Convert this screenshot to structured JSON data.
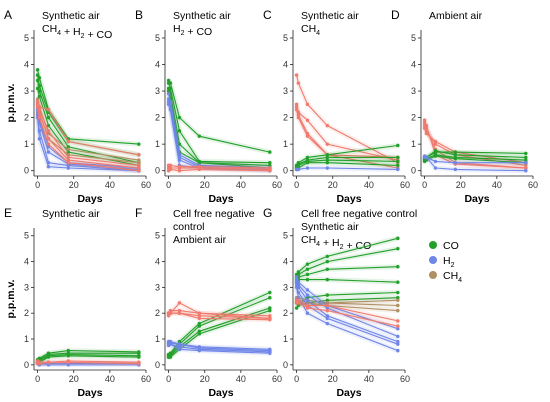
{
  "figure": {
    "colors": {
      "CO": "#22a02a",
      "H2": "#6f86e8",
      "CH4": "#b08f62",
      "control": "#f07a6e"
    },
    "legend": [
      {
        "key": "CO",
        "label": "CO",
        "color": "#22a02a"
      },
      {
        "key": "H2",
        "label": "H2",
        "color": "#6f86e8"
      },
      {
        "key": "CH4",
        "label": "CH4",
        "color": "#b08f62"
      }
    ]
  },
  "chart_data": [
    {
      "id": "A",
      "letter": "A",
      "type": "line",
      "title_lines": [
        "Synthetic air",
        "CH4 + H2 + CO"
      ],
      "xlabel": "Days",
      "ylabel": "p.p.m.v.",
      "xlim": [
        -2,
        60
      ],
      "ylim": [
        -0.2,
        5.3
      ],
      "xticks": [
        0,
        20,
        40,
        60
      ],
      "yticks": [
        0,
        1,
        2,
        3,
        4,
        5
      ],
      "x": [
        0,
        1,
        6,
        17,
        56
      ],
      "series": [
        {
          "group": "CO",
          "values": [
            3.8,
            3.5,
            2.3,
            1.2,
            1.0
          ]
        },
        {
          "group": "CO",
          "values": [
            3.6,
            3.2,
            2.2,
            1.1,
            0.6
          ]
        },
        {
          "group": "CO",
          "values": [
            3.4,
            3.0,
            2.0,
            0.9,
            0.3
          ]
        },
        {
          "group": "CO",
          "values": [
            3.1,
            2.8,
            1.7,
            0.7,
            0.2
          ]
        },
        {
          "group": "CH4",
          "values": [
            2.7,
            2.4,
            1.4,
            0.8,
            0.4
          ]
        },
        {
          "group": "CH4",
          "values": [
            2.5,
            2.2,
            1.2,
            0.6,
            0.3
          ]
        },
        {
          "group": "H2",
          "values": [
            2.3,
            1.9,
            0.9,
            0.3,
            0.1
          ]
        },
        {
          "group": "H2",
          "values": [
            2.2,
            1.8,
            0.7,
            0.25,
            0.05
          ]
        },
        {
          "group": "H2",
          "values": [
            2.1,
            1.5,
            0.3,
            0.2,
            0.0
          ]
        },
        {
          "group": "H2",
          "values": [
            2.0,
            1.2,
            0.15,
            0.1,
            0.0
          ]
        },
        {
          "group": "control",
          "values": [
            2.6,
            2.4,
            2.3,
            1.1,
            0.6
          ]
        },
        {
          "group": "control",
          "values": [
            2.6,
            2.3,
            1.5,
            0.5,
            0.2
          ]
        },
        {
          "group": "control",
          "values": [
            2.5,
            2.2,
            1.2,
            0.4,
            0.1
          ]
        },
        {
          "group": "control",
          "values": [
            2.4,
            2.0,
            1.0,
            0.3,
            0.0
          ]
        }
      ]
    },
    {
      "id": "B",
      "letter": "B",
      "type": "line",
      "title_lines": [
        "Synthetic air",
        "H2 + CO"
      ],
      "xlabel": "Days",
      "ylabel": "",
      "xlim": [
        -2,
        60
      ],
      "ylim": [
        -0.2,
        5.3
      ],
      "xticks": [
        0,
        20,
        40,
        60
      ],
      "yticks": [
        0,
        1,
        2,
        3,
        4,
        5
      ],
      "x": [
        0,
        1,
        6,
        17,
        56
      ],
      "series": [
        {
          "group": "CO",
          "values": [
            3.4,
            3.3,
            2.0,
            1.3,
            0.7
          ]
        },
        {
          "group": "CO",
          "values": [
            3.3,
            3.1,
            1.5,
            0.35,
            0.3
          ]
        },
        {
          "group": "CO",
          "values": [
            3.1,
            2.9,
            1.0,
            0.3,
            0.2
          ]
        },
        {
          "group": "CO",
          "values": [
            3.0,
            2.7,
            0.7,
            0.3,
            0.1
          ]
        },
        {
          "group": "H2",
          "values": [
            2.9,
            2.6,
            0.6,
            0.2,
            0.1
          ]
        },
        {
          "group": "H2",
          "values": [
            2.7,
            2.5,
            0.5,
            0.15,
            0.1
          ]
        },
        {
          "group": "H2",
          "values": [
            2.6,
            2.4,
            0.4,
            0.1,
            0.05
          ]
        },
        {
          "group": "H2",
          "values": [
            2.5,
            2.3,
            0.2,
            0.1,
            0.0
          ]
        },
        {
          "group": "control",
          "values": [
            0.2,
            0.2,
            0.15,
            0.15,
            0.1
          ]
        },
        {
          "group": "control",
          "values": [
            0.1,
            0.1,
            0.1,
            0.1,
            0.05
          ]
        },
        {
          "group": "control",
          "values": [
            0.0,
            0.05,
            0.0,
            0.05,
            0.0
          ]
        }
      ]
    },
    {
      "id": "C",
      "letter": "C",
      "type": "line",
      "title_lines": [
        "Synthetic air",
        "CH4"
      ],
      "xlabel": "Days",
      "ylabel": "",
      "xlim": [
        -2,
        60
      ],
      "ylim": [
        -0.2,
        5.3
      ],
      "xticks": [
        0,
        20,
        40,
        60
      ],
      "yticks": [
        0,
        1,
        2,
        3,
        4,
        5
      ],
      "x": [
        0,
        1,
        6,
        17,
        56
      ],
      "series": [
        {
          "group": "control",
          "values": [
            3.6,
            3.3,
            2.5,
            1.7,
            0.3
          ]
        },
        {
          "group": "control",
          "values": [
            2.5,
            2.2,
            1.9,
            1.0,
            0.4
          ]
        },
        {
          "group": "control",
          "values": [
            2.4,
            2.1,
            1.4,
            0.6,
            0.5
          ]
        },
        {
          "group": "control",
          "values": [
            2.3,
            2.0,
            1.3,
            0.6,
            0.1
          ]
        },
        {
          "group": "CO",
          "values": [
            0.2,
            0.3,
            0.5,
            0.6,
            0.95
          ]
        },
        {
          "group": "CO",
          "values": [
            0.15,
            0.25,
            0.4,
            0.5,
            0.5
          ]
        },
        {
          "group": "CO",
          "values": [
            0.1,
            0.2,
            0.35,
            0.4,
            0.35
          ]
        },
        {
          "group": "CO",
          "values": [
            0.05,
            0.1,
            0.3,
            0.3,
            0.2
          ]
        },
        {
          "group": "H2",
          "values": [
            0.05,
            0.05,
            0.1,
            0.1,
            0.05
          ]
        }
      ]
    },
    {
      "id": "D",
      "letter": "D",
      "type": "line",
      "title_lines": [
        "Ambient air"
      ],
      "xlabel": "Days",
      "ylabel": "",
      "xlim": [
        -2,
        60
      ],
      "ylim": [
        -0.2,
        5.3
      ],
      "xticks": [
        0,
        20,
        40,
        60
      ],
      "yticks": [
        0,
        1,
        2,
        3,
        4,
        5
      ],
      "x": [
        0,
        1,
        6,
        17,
        56
      ],
      "series": [
        {
          "group": "control",
          "values": [
            1.9,
            1.7,
            0.6,
            0.25,
            0.1
          ]
        },
        {
          "group": "control",
          "values": [
            1.8,
            1.6,
            0.8,
            0.3,
            0.1
          ]
        },
        {
          "group": "control",
          "values": [
            1.7,
            1.5,
            1.0,
            0.6,
            0.2
          ]
        },
        {
          "group": "control",
          "values": [
            1.6,
            1.4,
            1.1,
            0.7,
            0.3
          ]
        },
        {
          "group": "CO",
          "values": [
            0.5,
            0.5,
            0.7,
            0.7,
            0.65
          ]
        },
        {
          "group": "CO",
          "values": [
            0.45,
            0.5,
            0.75,
            0.6,
            0.5
          ]
        },
        {
          "group": "CO",
          "values": [
            0.4,
            0.45,
            0.6,
            0.5,
            0.4
          ]
        },
        {
          "group": "CO",
          "values": [
            0.35,
            0.4,
            0.55,
            0.45,
            0.3
          ]
        },
        {
          "group": "H2",
          "values": [
            0.55,
            0.5,
            0.35,
            0.3,
            0.3
          ]
        },
        {
          "group": "H2",
          "values": [
            0.5,
            0.5,
            0.1,
            0.05,
            0.0
          ]
        }
      ]
    },
    {
      "id": "E",
      "letter": "E",
      "type": "line",
      "title_lines": [
        "Synthetic air"
      ],
      "xlabel": "Days",
      "ylabel": "p.p.m.v.",
      "xlim": [
        -2,
        60
      ],
      "ylim": [
        -0.2,
        5.3
      ],
      "xticks": [
        0,
        20,
        40,
        60
      ],
      "yticks": [
        0,
        1,
        2,
        3,
        4,
        5
      ],
      "x": [
        0,
        1,
        6,
        17,
        56
      ],
      "series": [
        {
          "group": "CO",
          "values": [
            0.2,
            0.25,
            0.45,
            0.55,
            0.5
          ]
        },
        {
          "group": "CO",
          "values": [
            0.15,
            0.2,
            0.4,
            0.45,
            0.45
          ]
        },
        {
          "group": "CO",
          "values": [
            0.1,
            0.15,
            0.35,
            0.4,
            0.35
          ]
        },
        {
          "group": "CO",
          "values": [
            0.05,
            0.1,
            0.3,
            0.35,
            0.3
          ]
        },
        {
          "group": "H2",
          "values": [
            0.1,
            0.05,
            0.05,
            0.05,
            0.05
          ]
        },
        {
          "group": "H2",
          "values": [
            0.05,
            0.0,
            0.0,
            0.0,
            0.0
          ]
        },
        {
          "group": "control",
          "values": [
            0.15,
            0.1,
            0.1,
            0.15,
            0.1
          ]
        },
        {
          "group": "control",
          "values": [
            0.05,
            0.05,
            0.1,
            0.1,
            0.05
          ]
        }
      ]
    },
    {
      "id": "F",
      "letter": "F",
      "type": "line",
      "title_lines": [
        "Cell free negative",
        "control",
        "Ambient air"
      ],
      "xlabel": "Days",
      "ylabel": "",
      "xlim": [
        -2,
        60
      ],
      "ylim": [
        -0.2,
        5.3
      ],
      "xticks": [
        0,
        20,
        40,
        60
      ],
      "yticks": [
        0,
        1,
        2,
        3,
        4,
        5
      ],
      "x": [
        0,
        1,
        6,
        17,
        56
      ],
      "series": [
        {
          "group": "CO",
          "values": [
            0.4,
            0.45,
            0.9,
            1.6,
            2.8
          ]
        },
        {
          "group": "CO",
          "values": [
            0.35,
            0.4,
            0.8,
            1.5,
            2.6
          ]
        },
        {
          "group": "CO",
          "values": [
            0.3,
            0.35,
            0.7,
            1.3,
            2.2
          ]
        },
        {
          "group": "CO",
          "values": [
            0.3,
            0.3,
            0.6,
            1.2,
            2.1
          ]
        },
        {
          "group": "control",
          "values": [
            2.0,
            2.0,
            2.4,
            2.0,
            1.8
          ]
        },
        {
          "group": "control",
          "values": [
            2.0,
            2.1,
            2.1,
            2.0,
            1.9
          ]
        },
        {
          "group": "control",
          "values": [
            2.0,
            2.0,
            2.0,
            1.9,
            1.8
          ]
        },
        {
          "group": "control",
          "values": [
            1.9,
            2.0,
            2.0,
            1.8,
            1.75
          ]
        },
        {
          "group": "H2",
          "values": [
            0.9,
            0.9,
            0.8,
            0.7,
            0.6
          ]
        },
        {
          "group": "H2",
          "values": [
            0.85,
            0.85,
            0.8,
            0.65,
            0.55
          ]
        },
        {
          "group": "H2",
          "values": [
            0.8,
            0.8,
            0.7,
            0.6,
            0.5
          ]
        },
        {
          "group": "H2",
          "values": [
            0.75,
            0.8,
            0.6,
            0.55,
            0.45
          ]
        }
      ]
    },
    {
      "id": "G",
      "letter": "G",
      "type": "line",
      "title_lines": [
        "Cell free negative control",
        "Synthetic air",
        "CH4 + H2 + CO"
      ],
      "xlabel": "Days",
      "ylabel": "",
      "xlim": [
        -2,
        60
      ],
      "ylim": [
        -0.2,
        5.3
      ],
      "xticks": [
        0,
        20,
        40,
        60
      ],
      "yticks": [
        0,
        1,
        2,
        3,
        4,
        5
      ],
      "x": [
        0,
        1,
        6,
        17,
        56
      ],
      "series": [
        {
          "group": "CO",
          "values": [
            3.5,
            3.6,
            3.9,
            4.2,
            4.9
          ]
        },
        {
          "group": "CO",
          "values": [
            3.4,
            3.5,
            3.7,
            4.0,
            4.5
          ]
        },
        {
          "group": "CO",
          "values": [
            3.3,
            3.4,
            3.5,
            3.7,
            3.8
          ]
        },
        {
          "group": "CO",
          "values": [
            3.2,
            3.3,
            3.3,
            3.3,
            3.2
          ]
        },
        {
          "group": "CO",
          "values": [
            2.4,
            2.4,
            2.6,
            2.7,
            2.8
          ]
        },
        {
          "group": "CO",
          "values": [
            2.2,
            2.3,
            2.4,
            2.5,
            2.6
          ]
        },
        {
          "group": "CH4",
          "values": [
            2.6,
            2.6,
            2.5,
            2.4,
            2.5
          ]
        },
        {
          "group": "CH4",
          "values": [
            2.5,
            2.5,
            2.4,
            2.3,
            2.1
          ]
        },
        {
          "group": "CH4",
          "values": [
            2.4,
            2.4,
            2.3,
            2.4,
            2.3
          ]
        },
        {
          "group": "H2",
          "values": [
            3.4,
            3.2,
            2.9,
            2.3,
            1.4
          ]
        },
        {
          "group": "H2",
          "values": [
            3.3,
            3.1,
            2.7,
            2.2,
            1.1
          ]
        },
        {
          "group": "H2",
          "values": [
            3.2,
            3.0,
            2.5,
            1.9,
            0.9
          ]
        },
        {
          "group": "H2",
          "values": [
            3.1,
            2.8,
            2.3,
            1.8,
            0.8
          ]
        },
        {
          "group": "H2",
          "values": [
            3.0,
            2.6,
            2.0,
            1.6,
            0.55
          ]
        },
        {
          "group": "control",
          "values": [
            2.5,
            2.5,
            2.3,
            2.3,
            1.7
          ]
        },
        {
          "group": "control",
          "values": [
            2.4,
            2.4,
            2.2,
            2.1,
            1.5
          ]
        }
      ]
    }
  ]
}
